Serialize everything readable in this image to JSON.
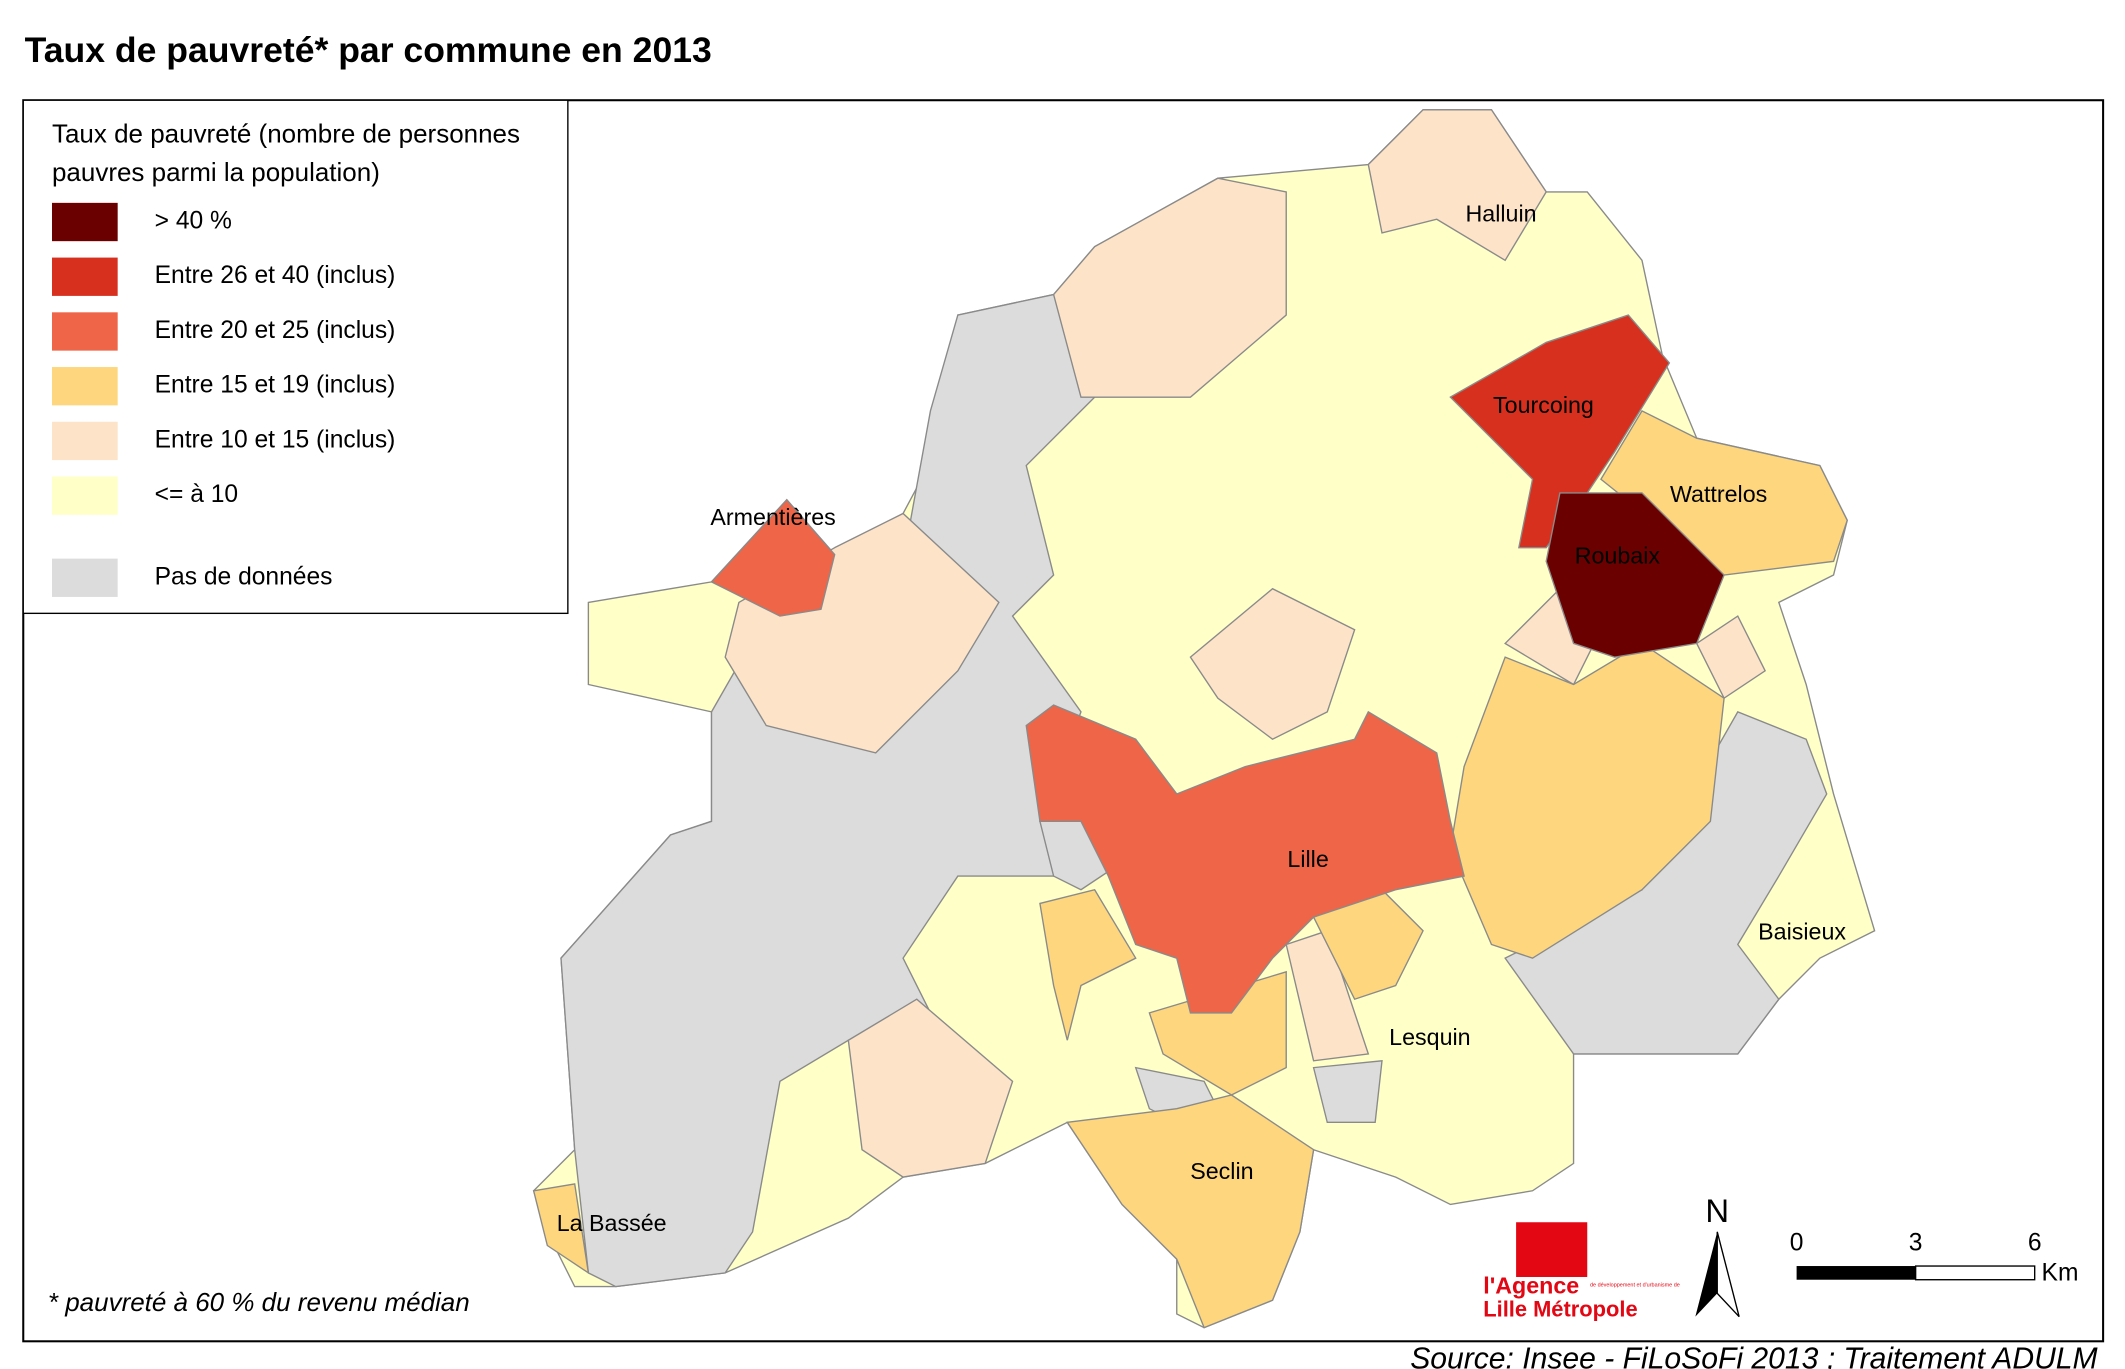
{
  "title": "Taux de pauvreté* par commune en 2013",
  "legend": {
    "title_lines": [
      "Taux de pauvreté (nombre de personnes",
      "pauvres parmi la population)"
    ],
    "entries": [
      {
        "label": "> 40 %",
        "color": "#6b0000"
      },
      {
        "label": "Entre 26 et 40 (inclus)",
        "color": "#d7301f"
      },
      {
        "label": "Entre 20 et 25 (inclus)",
        "color": "#ef6548"
      },
      {
        "label": "Entre 15 et 19 (inclus)",
        "color": "#fdd67e"
      },
      {
        "label": "Entre 10 et 15 (inclus)",
        "color": "#fde3c8"
      },
      {
        "label": "<= à 10",
        "color": "#ffffc8"
      },
      {
        "label": "Pas de données",
        "color": "#dcdcdc"
      }
    ]
  },
  "places": [
    "Halluin",
    "Tourcoing",
    "Wattrelos",
    "Roubaix",
    "Armentières",
    "Lille",
    "Baisieux",
    "Lesquin",
    "Seclin",
    "La Bassée"
  ],
  "footnote": "* pauvreté à 60 % du revenu médian",
  "source": "Source: Insee - FiLoSoFi 2013 ; Traitement ADULM",
  "logo": {
    "line1": "l'Agence",
    "small": "de développement et d'urbanisme de",
    "line2": "Lille Métropole"
  },
  "north": "N",
  "scale_bar": {
    "labels": [
      "0",
      "3",
      "6"
    ],
    "unit": "Km"
  }
}
